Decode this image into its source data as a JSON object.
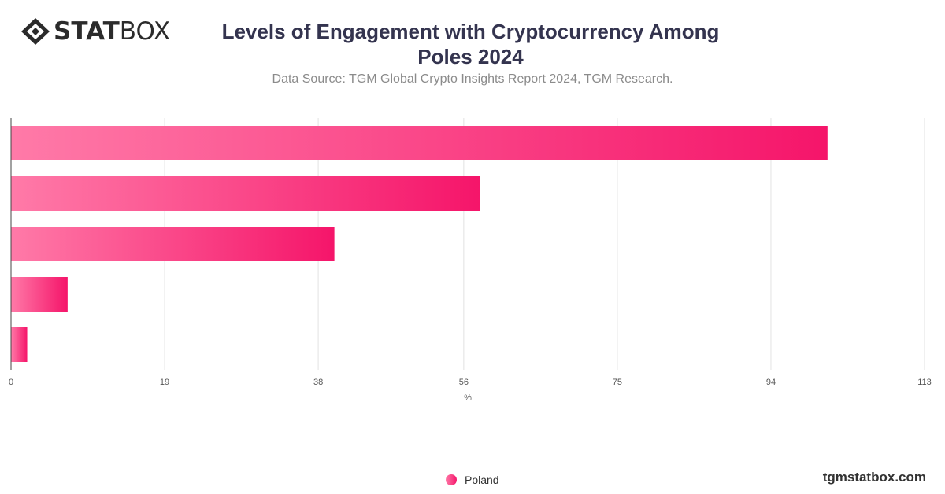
{
  "brand": {
    "logo_bold": "STAT",
    "logo_light": "BOX",
    "site": "tgmstatbox.com"
  },
  "colors": {
    "bar_start": "#ff7aa8",
    "bar_end": "#f5156a",
    "grid": "#e2e2e2",
    "axis": "#444444"
  },
  "chart_data": {
    "type": "bar",
    "orientation": "horizontal",
    "title": "Levels of Engagement with Cryptocurrency Among Poles 2024",
    "title_lines": [
      "Levels of Engagement with Cryptocurrency Among",
      "Poles 2024"
    ],
    "subtitle": "Data Source: TGM Global Crypto Insights Report 2024, TGM Research.",
    "xlabel": "%",
    "ylabel": "",
    "xlim": [
      0,
      113
    ],
    "ticks": [
      "0",
      "19",
      "38",
      "56",
      "75",
      "94",
      "113"
    ],
    "tick_values": [
      0,
      19,
      38,
      56,
      75,
      94,
      113
    ],
    "grid": true,
    "legend_position": "bottom",
    "categories": [
      "",
      "",
      "",
      "",
      ""
    ],
    "series": [
      {
        "name": "Poland",
        "values": [
          101,
          58,
          40,
          7,
          2
        ]
      }
    ]
  }
}
